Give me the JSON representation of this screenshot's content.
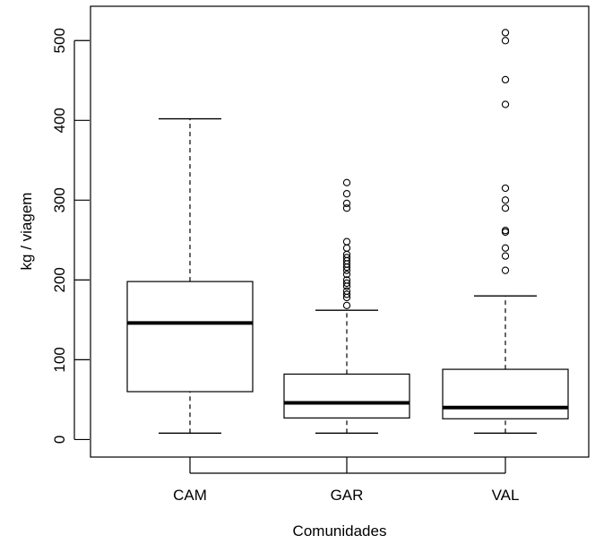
{
  "chart_data": {
    "type": "boxplot",
    "xlabel": "Comunidades",
    "ylabel": "kg / viagem",
    "ylim": [
      -22,
      543
    ],
    "yticks": [
      0,
      100,
      200,
      300,
      400,
      500
    ],
    "grid": false,
    "legend": "none",
    "categories": [
      "CAM",
      "GAR",
      "VAL"
    ],
    "boxes": [
      {
        "category": "CAM",
        "whisker_low": 8,
        "q1": 60,
        "median": 146,
        "q3": 198,
        "whisker_high": 402,
        "outliers": []
      },
      {
        "category": "GAR",
        "whisker_low": 8,
        "q1": 27,
        "median": 46,
        "q3": 82,
        "whisker_high": 162,
        "outliers": [
          168,
          178,
          182,
          186,
          192,
          196,
          200,
          207,
          212,
          216,
          220,
          224,
          228,
          232,
          240,
          248,
          290,
          296,
          308,
          322
        ]
      },
      {
        "category": "VAL",
        "whisker_low": 8,
        "q1": 26,
        "median": 40,
        "q3": 88,
        "whisker_high": 180,
        "outliers": [
          212,
          230,
          240,
          260,
          262,
          290,
          300,
          315,
          420,
          451,
          500,
          510
        ]
      }
    ]
  }
}
